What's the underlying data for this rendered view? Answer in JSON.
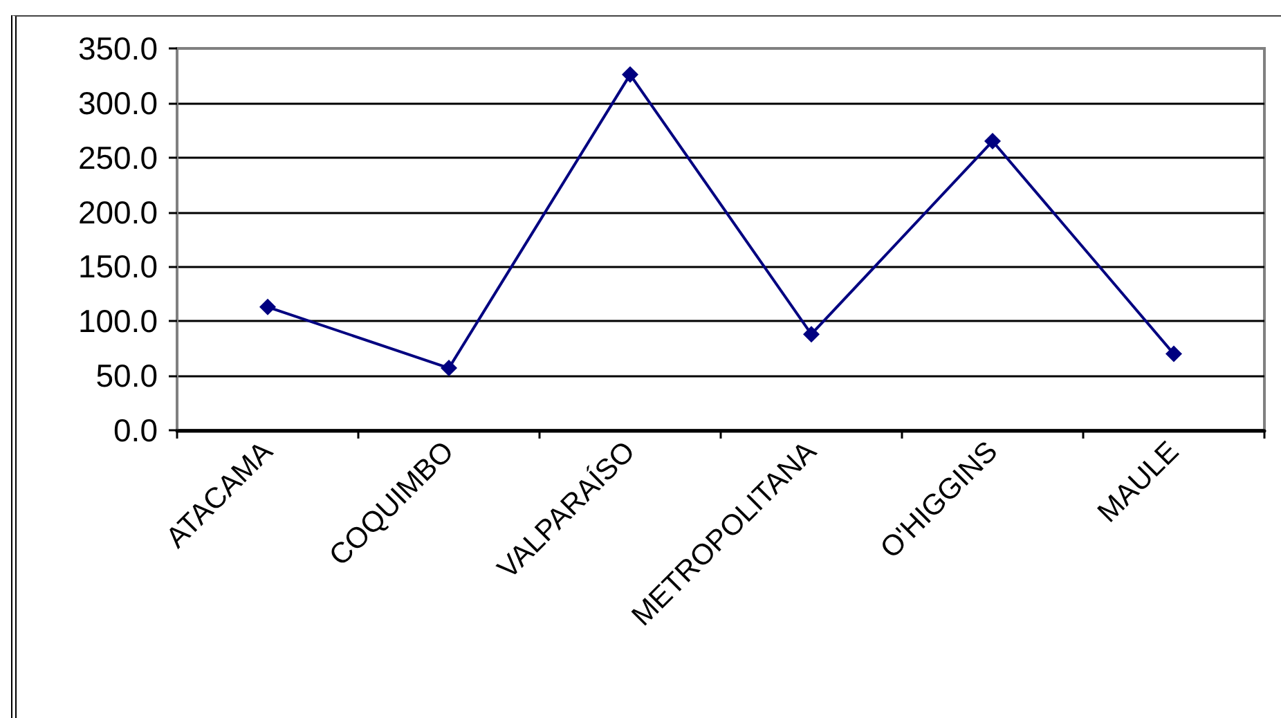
{
  "chart_data": {
    "type": "line",
    "categories": [
      "ATACAMA",
      "COQUIMBO",
      "VALPARAÍSO",
      "METROPOLITANA",
      "O'HIGGINS",
      "MAULE"
    ],
    "series": [
      {
        "color": "#000080",
        "values": [
          113,
          57,
          326,
          88,
          265,
          70
        ]
      }
    ],
    "ylim": [
      0,
      350
    ],
    "yticks": [
      {
        "value": 0,
        "label": "0.0"
      },
      {
        "value": 50,
        "label": "50.0"
      },
      {
        "value": 100,
        "label": "100.0"
      },
      {
        "value": 150,
        "label": "150.0"
      },
      {
        "value": 200,
        "label": "200.0"
      },
      {
        "value": 250,
        "label": "250.0"
      },
      {
        "value": 300,
        "label": "300.0"
      },
      {
        "value": 350,
        "label": "350.0"
      }
    ],
    "grid": "y",
    "marker": "diamond",
    "line_style": "solid"
  }
}
